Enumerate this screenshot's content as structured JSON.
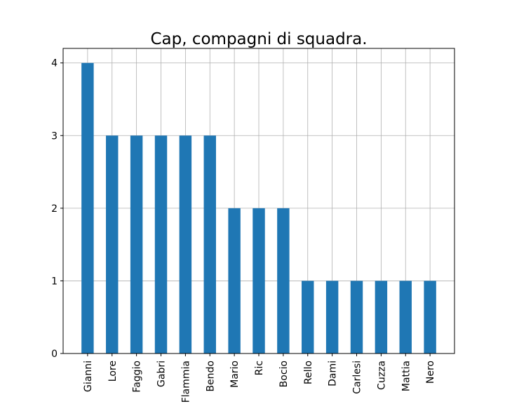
{
  "chart_data": {
    "type": "bar",
    "title": "Cap, compagni di squadra.",
    "xlabel": "",
    "ylabel": "",
    "categories": [
      "Gianni",
      "Lore",
      "Faggio",
      "Gabri",
      "Flammia",
      "Bendo",
      "Mario",
      "Ric",
      "Bocio",
      "Rello",
      "Dami",
      "Carlesi",
      "Cuzza",
      "Mattia",
      "Nero"
    ],
    "values": [
      4,
      3,
      3,
      3,
      3,
      3,
      2,
      2,
      2,
      1,
      1,
      1,
      1,
      1,
      1
    ],
    "ylim": [
      0,
      4.2
    ],
    "yticks": [
      "0",
      "1",
      "2",
      "3",
      "4"
    ],
    "grid": true,
    "bar_color": "#1f77b4"
  }
}
